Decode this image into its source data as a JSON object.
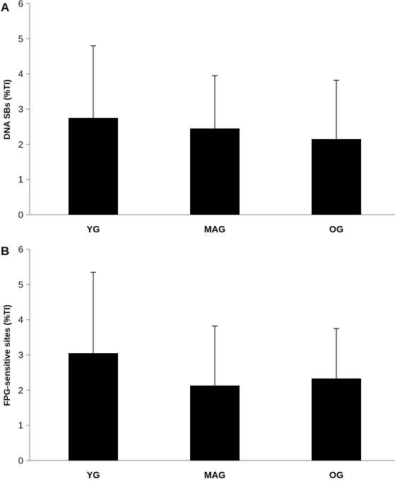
{
  "chart_data": [
    {
      "type": "bar",
      "panel": "A",
      "categories": [
        "YG",
        "MAG",
        "OG"
      ],
      "values": [
        2.75,
        2.45,
        2.15
      ],
      "error_upper": [
        4.8,
        3.95,
        3.82
      ],
      "ylabel": "DNA SBs (%TI)",
      "xlabel": "",
      "ylim": [
        0,
        6
      ],
      "yticks": [
        "0",
        "1",
        "2",
        "3",
        "4",
        "5",
        "6"
      ],
      "bar_color": "#000000",
      "grid": false
    },
    {
      "type": "bar",
      "panel": "B",
      "categories": [
        "YG",
        "MAG",
        "OG"
      ],
      "values": [
        3.05,
        2.13,
        2.33
      ],
      "error_upper": [
        5.35,
        3.82,
        3.75
      ],
      "ylabel": "FPG-sensitive sites (%TI)",
      "xlabel": "",
      "ylim": [
        0,
        6
      ],
      "yticks": [
        "0",
        "1",
        "2",
        "3",
        "4",
        "5",
        "6"
      ],
      "bar_color": "#000000",
      "grid": false
    }
  ]
}
